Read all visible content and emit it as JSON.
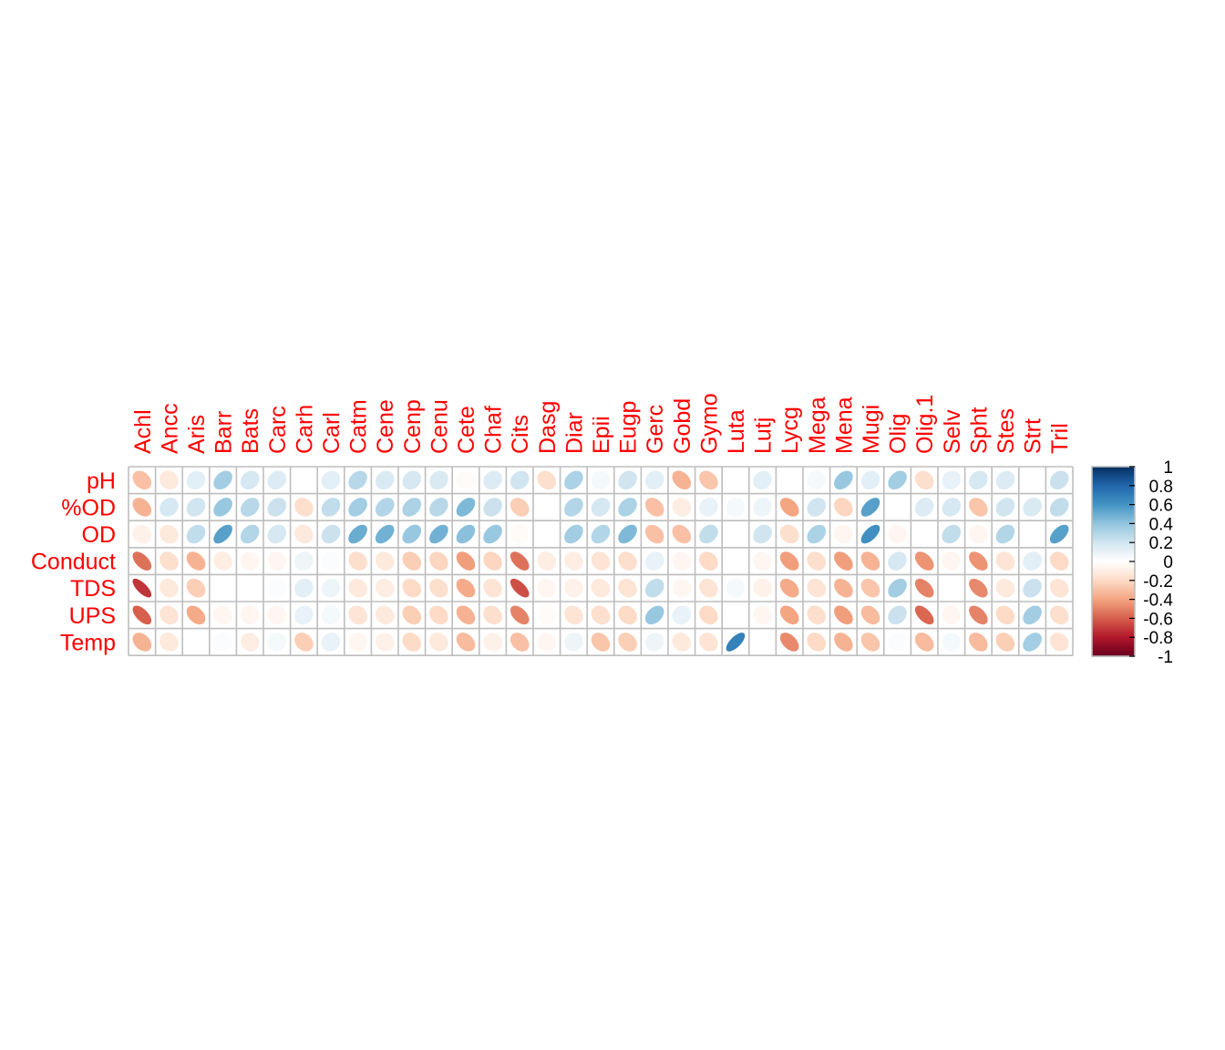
{
  "chart_data": {
    "type": "heatmap",
    "style": "ellipse-correlation-matrix",
    "colors": {
      "label": "#ff0000",
      "grid": "#bebebe",
      "neg_end": "#67001f",
      "pos_end": "#053061",
      "mid": "#ffffff"
    },
    "columns": [
      "Achl",
      "Ancc",
      "Aris",
      "Barr",
      "Bats",
      "Carc",
      "Carh",
      "Carl",
      "Catm",
      "Cene",
      "Cenp",
      "Cenu",
      "Cete",
      "Chaf",
      "Cits",
      "Dasg",
      "Diar",
      "Epii",
      "Eugp",
      "Gerc",
      "Gobd",
      "Gymo",
      "Luta",
      "Lutj",
      "Lycg",
      "Mega",
      "Mena",
      "Mugi",
      "Olig",
      "Olig.1",
      "Selv",
      "Spht",
      "Stes",
      "Strt",
      "Tril"
    ],
    "rows": [
      "pH",
      "%OD",
      "OD",
      "Conduct",
      "TDS",
      "UPS",
      "Temp"
    ],
    "values": [
      [
        -0.3,
        -0.12,
        0.12,
        0.35,
        0.18,
        0.15,
        0.0,
        0.12,
        0.28,
        0.16,
        0.18,
        0.16,
        -0.02,
        0.15,
        0.2,
        -0.18,
        0.32,
        0.05,
        0.2,
        0.12,
        -0.35,
        -0.28,
        0.0,
        0.12,
        0.0,
        0.05,
        0.38,
        0.12,
        0.35,
        -0.18,
        0.1,
        0.18,
        0.15,
        0.0,
        0.22
      ],
      [
        -0.35,
        0.18,
        0.2,
        0.38,
        0.28,
        0.22,
        -0.18,
        0.25,
        0.35,
        0.3,
        0.32,
        0.28,
        0.45,
        0.22,
        -0.25,
        0.0,
        0.3,
        0.18,
        0.32,
        -0.3,
        -0.1,
        0.1,
        0.05,
        0.08,
        -0.4,
        0.2,
        -0.22,
        0.55,
        0.0,
        0.15,
        0.18,
        -0.28,
        0.2,
        0.16,
        0.25
      ],
      [
        -0.08,
        -0.12,
        0.25,
        0.55,
        0.3,
        0.18,
        -0.12,
        0.22,
        0.5,
        0.48,
        0.38,
        0.48,
        0.42,
        0.38,
        -0.02,
        0.0,
        0.35,
        0.3,
        0.45,
        -0.3,
        -0.3,
        0.25,
        0.0,
        0.2,
        -0.18,
        0.32,
        -0.05,
        0.62,
        -0.05,
        0.0,
        0.25,
        -0.05,
        0.3,
        0.0,
        0.55
      ],
      [
        -0.55,
        -0.18,
        -0.35,
        -0.1,
        -0.05,
        -0.05,
        0.08,
        0.02,
        -0.18,
        -0.12,
        -0.25,
        -0.22,
        -0.42,
        -0.22,
        -0.55,
        -0.1,
        -0.1,
        -0.15,
        -0.18,
        0.1,
        -0.05,
        -0.2,
        0.0,
        -0.05,
        -0.42,
        -0.18,
        -0.42,
        -0.35,
        0.18,
        -0.45,
        -0.05,
        -0.45,
        -0.15,
        0.12,
        -0.2
      ],
      [
        -0.72,
        -0.12,
        -0.25,
        0.0,
        0.0,
        0.02,
        0.12,
        0.08,
        -0.12,
        -0.1,
        -0.2,
        -0.18,
        -0.38,
        -0.15,
        -0.65,
        -0.05,
        -0.08,
        -0.12,
        -0.15,
        0.25,
        -0.05,
        -0.15,
        0.05,
        -0.08,
        -0.38,
        -0.15,
        -0.35,
        -0.28,
        0.35,
        -0.5,
        0.0,
        -0.48,
        -0.12,
        0.22,
        -0.15
      ],
      [
        -0.6,
        -0.15,
        -0.38,
        -0.05,
        -0.05,
        -0.05,
        0.1,
        0.05,
        -0.15,
        -0.12,
        -0.25,
        -0.2,
        -0.35,
        -0.18,
        -0.5,
        -0.02,
        -0.15,
        -0.18,
        -0.2,
        0.38,
        0.1,
        -0.2,
        0.0,
        -0.05,
        -0.4,
        -0.18,
        -0.42,
        -0.32,
        0.22,
        -0.58,
        -0.05,
        -0.5,
        -0.2,
        0.35,
        -0.18
      ],
      [
        -0.35,
        -0.12,
        0.0,
        0.02,
        -0.1,
        0.05,
        -0.25,
        0.1,
        -0.05,
        -0.08,
        -0.2,
        -0.12,
        -0.32,
        -0.08,
        -0.3,
        -0.05,
        0.08,
        -0.28,
        -0.25,
        0.08,
        -0.12,
        -0.15,
        0.68,
        0.0,
        -0.48,
        -0.2,
        -0.35,
        -0.28,
        0.02,
        -0.32,
        0.05,
        -0.32,
        -0.25,
        0.35,
        -0.15
      ]
    ],
    "colorbar": {
      "range": [
        -1,
        1
      ],
      "ticks": [
        "1",
        "0.8",
        "0.6",
        "0.4",
        "0.2",
        "0",
        "-0.2",
        "-0.4",
        "-0.6",
        "-0.8",
        "-1"
      ]
    }
  }
}
